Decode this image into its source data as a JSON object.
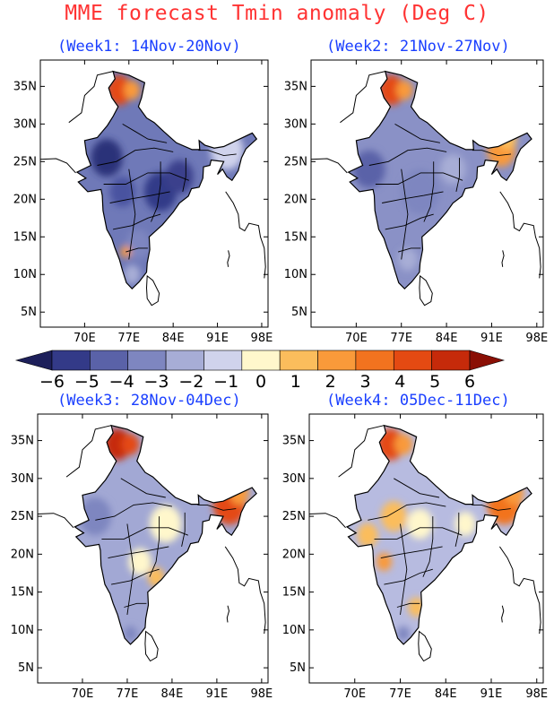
{
  "title": "MME forecast Tmin anomaly (Deg C)",
  "panels": [
    {
      "title": "(Week1: 14Nov-20Nov)",
      "id": "week1"
    },
    {
      "title": "(Week2: 21Nov-27Nov)",
      "id": "week2"
    },
    {
      "title": "(Week3: 28Nov-04Dec)",
      "id": "week3"
    },
    {
      "title": "(Week4: 05Dec-11Dec)",
      "id": "week4"
    }
  ],
  "axes": {
    "lat_labels": [
      "35N",
      "30N",
      "25N",
      "20N",
      "15N",
      "10N",
      "5N"
    ],
    "lat_values": [
      35,
      30,
      25,
      20,
      15,
      10,
      5
    ],
    "lon_labels": [
      "70E",
      "77E",
      "84E",
      "91E",
      "98E"
    ],
    "lon_values": [
      70,
      77,
      84,
      91,
      98
    ],
    "lon_range": [
      63,
      99
    ],
    "lat_range": [
      3,
      38.5
    ]
  },
  "legend": {
    "tick_labels": [
      "-6",
      "-5",
      "-4",
      "-3",
      "-2",
      "-1",
      "0",
      "1",
      "2",
      "3",
      "4",
      "5",
      "6"
    ],
    "colors": [
      "#1d1f5a",
      "#333a88",
      "#5a62a8",
      "#7e86c0",
      "#a7add6",
      "#d0d3ec",
      "#fff7cc",
      "#fbbd5c",
      "#f99a3a",
      "#f2731f",
      "#e44a12",
      "#c62a0a",
      "#8a0f05"
    ]
  },
  "map_data": {
    "week1": {
      "base": "#6f79b8",
      "patches": [
        {
          "lon": 73.5,
          "lat": 25.5,
          "r": 2.5,
          "color": "#2c3279"
        },
        {
          "lon": 82,
          "lat": 21,
          "r": 2.6,
          "color": "#333a88"
        },
        {
          "lon": 85,
          "lat": 23,
          "r": 2.2,
          "color": "#3a418c"
        },
        {
          "lon": 76,
          "lat": 21,
          "r": 2.0,
          "color": "#4a52a0"
        },
        {
          "lon": 78.5,
          "lat": 14,
          "r": 2.0,
          "color": "#7e86c0"
        },
        {
          "lon": 77.5,
          "lat": 10,
          "r": 1.3,
          "color": "#a7add6"
        },
        {
          "lon": 92.5,
          "lat": 26.5,
          "r": 2.6,
          "color": "#d0d3ec"
        },
        {
          "lon": 75.5,
          "lat": 34.5,
          "r": 2.0,
          "color": "#e44a12"
        },
        {
          "lon": 77.5,
          "lat": 34.5,
          "r": 1.3,
          "color": "#f99a3a"
        },
        {
          "lon": 76.5,
          "lat": 13,
          "r": 0.8,
          "color": "#f99a3a"
        }
      ]
    },
    "week2": {
      "base": "#8a91c6",
      "patches": [
        {
          "lon": 72,
          "lat": 24,
          "r": 2.5,
          "color": "#5a62a8"
        },
        {
          "lon": 80,
          "lat": 21,
          "r": 3.0,
          "color": "#7e86c0"
        },
        {
          "lon": 85,
          "lat": 24,
          "r": 2.0,
          "color": "#a7add6"
        },
        {
          "lon": 92.5,
          "lat": 26.5,
          "r": 2.2,
          "color": "#f99a3a"
        },
        {
          "lon": 93.5,
          "lat": 28,
          "r": 1.4,
          "color": "#fbbd5c"
        },
        {
          "lon": 75.5,
          "lat": 34.5,
          "r": 2.0,
          "color": "#e44a12"
        },
        {
          "lon": 77.5,
          "lat": 34.5,
          "r": 1.3,
          "color": "#f99a3a"
        },
        {
          "lon": 78,
          "lat": 12,
          "r": 1.5,
          "color": "#a7add6"
        }
      ]
    },
    "week3": {
      "base": "#a2a8d4",
      "patches": [
        {
          "lon": 72,
          "lat": 25,
          "r": 2.5,
          "color": "#7e86c0"
        },
        {
          "lon": 83,
          "lat": 24,
          "r": 2.5,
          "color": "#fff7cc"
        },
        {
          "lon": 79,
          "lat": 19,
          "r": 1.8,
          "color": "#fff7cc"
        },
        {
          "lon": 81.5,
          "lat": 17,
          "r": 1.3,
          "color": "#fbbd5c"
        },
        {
          "lon": 93,
          "lat": 26.5,
          "r": 2.6,
          "color": "#e44a12"
        },
        {
          "lon": 94.5,
          "lat": 28,
          "r": 1.5,
          "color": "#f99a3a"
        },
        {
          "lon": 75.5,
          "lat": 34.5,
          "r": 2.1,
          "color": "#c62a0a"
        },
        {
          "lon": 77.5,
          "lat": 34.5,
          "r": 1.4,
          "color": "#e44a12"
        },
        {
          "lon": 77.5,
          "lat": 9.5,
          "r": 1.0,
          "color": "#7e86c0"
        }
      ]
    },
    "week4": {
      "base": "#b7bbe0",
      "patches": [
        {
          "lon": 72,
          "lat": 22.5,
          "r": 1.6,
          "color": "#fbbd5c"
        },
        {
          "lon": 76,
          "lat": 25,
          "r": 2.0,
          "color": "#fbbd5c"
        },
        {
          "lon": 80,
          "lat": 24,
          "r": 2.0,
          "color": "#fff7cc"
        },
        {
          "lon": 74.5,
          "lat": 19,
          "r": 1.2,
          "color": "#f99a3a"
        },
        {
          "lon": 87,
          "lat": 24,
          "r": 1.6,
          "color": "#fff7cc"
        },
        {
          "lon": 79.5,
          "lat": 13,
          "r": 1.3,
          "color": "#fbbd5c"
        },
        {
          "lon": 93,
          "lat": 26.5,
          "r": 2.6,
          "color": "#f2731f"
        },
        {
          "lon": 94.5,
          "lat": 28,
          "r": 1.5,
          "color": "#f99a3a"
        },
        {
          "lon": 75.5,
          "lat": 34.5,
          "r": 2.1,
          "color": "#e44a12"
        },
        {
          "lon": 77.5,
          "lat": 34.5,
          "r": 1.4,
          "color": "#f99a3a"
        },
        {
          "lon": 77.5,
          "lat": 9.5,
          "r": 1.0,
          "color": "#7e86c0"
        }
      ]
    }
  }
}
